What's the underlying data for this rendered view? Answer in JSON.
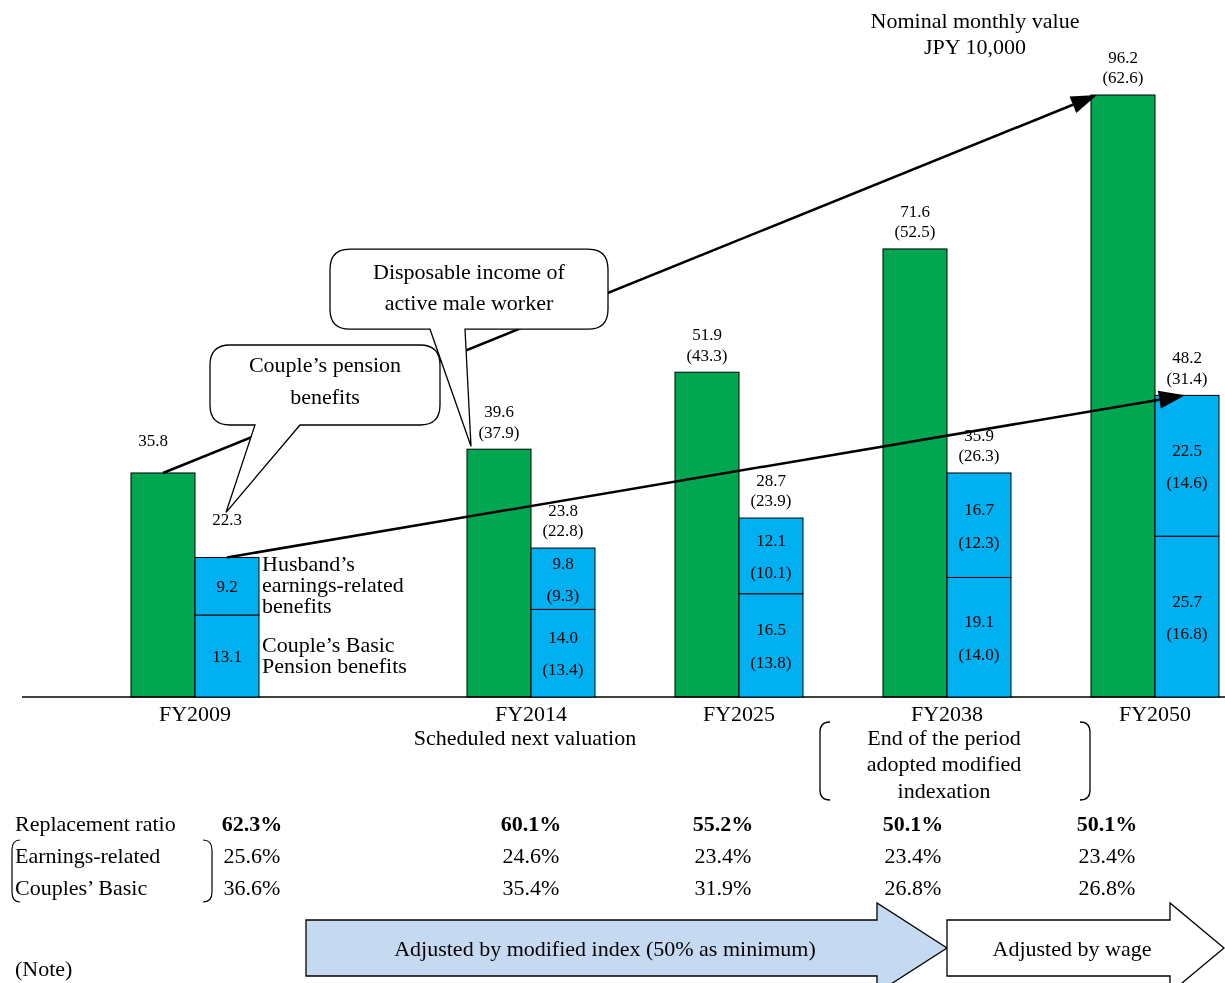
{
  "chart_data": [
    {
      "type": "bar",
      "title": "Nominal monthly value\nJPY 10,000",
      "categories": [
        "FY2009",
        "FY2014",
        "FY2025",
        "FY2038",
        "FY2050"
      ],
      "series": [
        {
          "name": "Disposable income of active male worker",
          "color": "#00a650",
          "values": [
            35.8,
            39.6,
            51.9,
            71.6,
            96.2
          ],
          "value_labels": [
            "35.8",
            "39.6\n(37.9)",
            "51.9\n(43.3)",
            "71.6\n(52.5)",
            "96.2\n(62.6)"
          ]
        }
      ],
      "annotations": [
        "Couple’s pension\nbenefits",
        "Scheduled next valuation",
        "End of the period\nadopted modified\nindexation",
        "Replacement ratio",
        "62.3%",
        "60.1%",
        "55.2%",
        "50.1%",
        "50.1%",
        "Earnings-related",
        "25.6%",
        "24.6%",
        "23.4%",
        "23.4%",
        "23.4%",
        "Couples’ Basic",
        "36.6%",
        "35.4%",
        "31.9%",
        "26.8%",
        "26.8%",
        "Adjusted by modified index (50% as minimum)",
        "Adjusted by wage",
        "(Note)"
      ]
    },
    {
      "type": "bar",
      "stacked": true,
      "categories": [
        "FY2009",
        "FY2014",
        "FY2025",
        "FY2038",
        "FY2050"
      ],
      "series": [
        {
          "name": "Couple’s Basic\nPension benefits",
          "color": "#00b0f0",
          "values": [
            13.1,
            14.0,
            16.5,
            19.1,
            25.7
          ],
          "value_labels": [
            "13.1",
            "14.0\n(13.4)",
            "16.5\n(13.8)",
            "19.1\n(14.0)",
            "25.7\n(16.8)"
          ]
        },
        {
          "name": "Husband’s\nearnings-related\nbenefits",
          "color": "#00b0f0",
          "values": [
            9.2,
            9.8,
            12.1,
            16.7,
            22.5
          ],
          "value_labels": [
            "9.2",
            "9.8\n(9.3)",
            "12.1\n(10.1)",
            "16.7\n(12.3)",
            "22.5\n(14.6)"
          ]
        }
      ],
      "tick_labels": false,
      "totals": [
        "22.3",
        "23.8\n(22.8)",
        "28.7\n(23.9)",
        "35.9\n(26.3)",
        "48.2\n(31.4)"
      ]
    }
  ]
}
